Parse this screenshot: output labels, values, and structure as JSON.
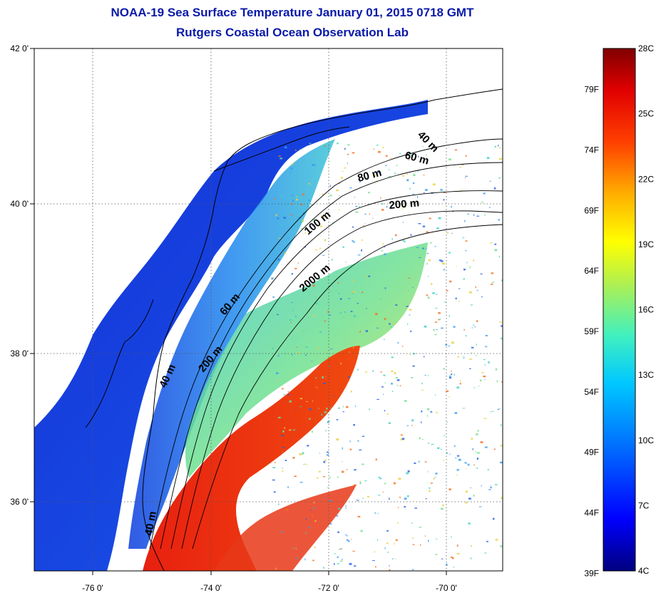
{
  "title": {
    "line1": "NOAA-19 Sea Surface Temperature January 01, 2015 0718 GMT",
    "line2": "Rutgers Coastal Ocean Observation Lab"
  },
  "map": {
    "lon_ticks": [
      "-76 0'",
      "-74 0'",
      "-72 0'",
      "-70 0'"
    ],
    "lat_ticks": [
      "42 0'",
      "40 0'",
      "38 0'",
      "36 0'"
    ],
    "depth_contours": [
      "40 m",
      "60 m",
      "80 m",
      "200 m",
      "100 m",
      "2000 m",
      "60 m",
      "200 m",
      "40 m",
      "40 m"
    ],
    "colors": {
      "land": "#ffffff",
      "coast": "#000000",
      "cold_water": "#1438d8",
      "cool_water": "#2a8cf0",
      "mid_water": "#4fd6c0",
      "warm_water": "#e8e030",
      "hot_water": "#d81810"
    }
  },
  "colorbar": {
    "celsius": [
      "28C",
      "25C",
      "22C",
      "19C",
      "16C",
      "13C",
      "10C",
      "7C",
      "4C"
    ],
    "fahrenheit": [
      "79F",
      "74F",
      "69F",
      "64F",
      "59F",
      "54F",
      "49F",
      "44F",
      "39F"
    ],
    "min_c": 4,
    "max_c": 28
  }
}
